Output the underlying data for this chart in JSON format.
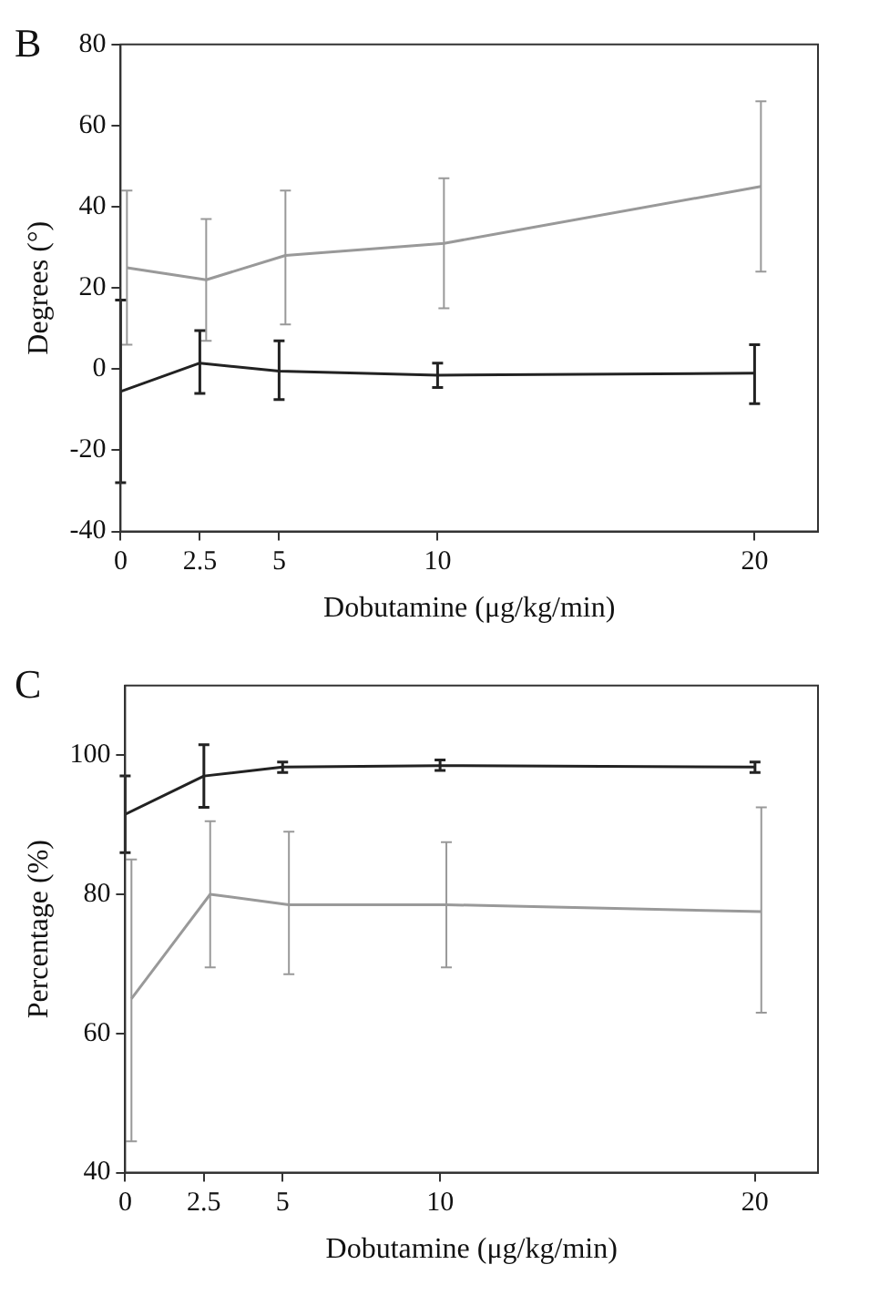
{
  "chart_data": [
    {
      "type": "line",
      "title": "B",
      "xlabel": "Dobutamine (μg/kg/min)",
      "ylabel": "Degrees (°)",
      "xlim": [
        0,
        22
      ],
      "xticks": [
        0,
        2.5,
        5,
        10,
        20
      ],
      "ylim": [
        -40,
        80
      ],
      "yticks": [
        -40,
        -20,
        0,
        20,
        40,
        60,
        80
      ],
      "grid": false,
      "legend": false,
      "series": [
        {
          "color": "#999999",
          "x": [
            0.2,
            2.7,
            5.2,
            10.2,
            20.2
          ],
          "values": [
            25,
            22,
            28,
            31,
            45
          ],
          "errors": [
            [
              6,
              44
            ],
            [
              7,
              37
            ],
            [
              11,
              44
            ],
            [
              15,
              47
            ],
            [
              24,
              66
            ]
          ]
        },
        {
          "color": "#222222",
          "x": [
            0,
            2.5,
            5,
            10,
            20
          ],
          "values": [
            -5.5,
            1.5,
            -0.5,
            -1.5,
            -1
          ],
          "errors": [
            [
              -28,
              17
            ],
            [
              -6,
              9.5
            ],
            [
              -7.5,
              7
            ],
            [
              -4.5,
              1.5
            ],
            [
              -8.5,
              6
            ]
          ]
        }
      ]
    },
    {
      "type": "line",
      "title": "C",
      "xlabel": "Dobutamine (μg/kg/min)",
      "ylabel": "Percentage (%)",
      "xlim": [
        0,
        22
      ],
      "xticks": [
        0,
        2.5,
        5,
        10,
        20
      ],
      "ylim": [
        40,
        110
      ],
      "yticks": [
        40,
        60,
        80,
        100
      ],
      "grid": false,
      "legend": false,
      "series": [
        {
          "color": "#222222",
          "x": [
            0,
            2.5,
            5,
            10,
            20
          ],
          "values": [
            91.5,
            97,
            98.3,
            98.5,
            98.3
          ],
          "errors": [
            [
              86,
              97
            ],
            [
              92.5,
              101.5
            ],
            [
              97.5,
              99
            ],
            [
              97.8,
              99.3
            ],
            [
              97.5,
              99
            ]
          ]
        },
        {
          "color": "#999999",
          "x": [
            0.2,
            2.7,
            5.2,
            10.2,
            20.2
          ],
          "values": [
            65,
            80,
            78.5,
            78.5,
            77.5
          ],
          "errors": [
            [
              44.5,
              85
            ],
            [
              69.5,
              90.5
            ],
            [
              68.5,
              89
            ],
            [
              69.5,
              87.5
            ],
            [
              63,
              92.5
            ]
          ]
        }
      ]
    }
  ]
}
